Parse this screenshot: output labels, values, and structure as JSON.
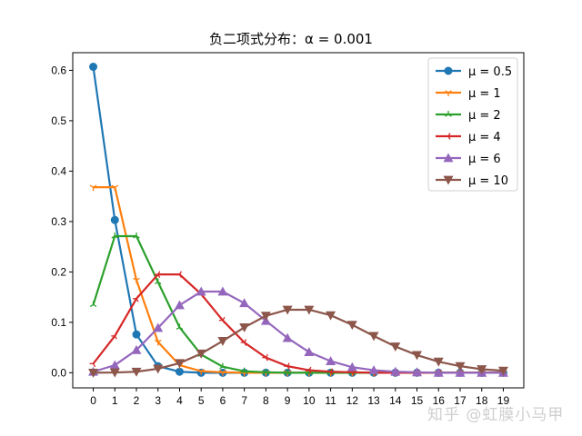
{
  "chart_data": {
    "type": "line",
    "title": "负二项式分布：α = 0.001",
    "xlabel": "",
    "ylabel": "",
    "x": [
      0,
      1,
      2,
      3,
      4,
      5,
      6,
      7,
      8,
      9,
      10,
      11,
      12,
      13,
      14,
      15,
      16,
      17,
      18,
      19
    ],
    "xticks": [
      "0",
      "1",
      "2",
      "3",
      "4",
      "5",
      "6",
      "7",
      "8",
      "9",
      "10",
      "11",
      "12",
      "13",
      "14",
      "15",
      "16",
      "17",
      "18",
      "19"
    ],
    "yticks": [
      "0.0",
      "0.1",
      "0.2",
      "0.3",
      "0.4",
      "0.5",
      "0.6"
    ],
    "ylim": [
      -0.03,
      0.635
    ],
    "xlim": [
      -0.95,
      19.95
    ],
    "grid": false,
    "legend_position": "upper right",
    "series": [
      {
        "name": "μ = 0.5",
        "color": "#1f77b4",
        "marker": "circle",
        "values": [
          0.607,
          0.303,
          0.076,
          0.013,
          0.002,
          0.0,
          0,
          0,
          0,
          0,
          0,
          0,
          0,
          0,
          0,
          0,
          0,
          0,
          0,
          0
        ]
      },
      {
        "name": "μ = 1",
        "color": "#ff7f0e",
        "marker": "tri_down",
        "values": [
          0.368,
          0.368,
          0.184,
          0.061,
          0.015,
          0.003,
          0.001,
          0,
          0,
          0,
          0,
          0,
          0,
          0,
          0,
          0,
          0,
          0,
          0,
          0
        ]
      },
      {
        "name": "μ = 2",
        "color": "#2ca02c",
        "marker": "tri_up",
        "values": [
          0.135,
          0.271,
          0.271,
          0.18,
          0.09,
          0.036,
          0.012,
          0.003,
          0.001,
          0,
          0,
          0,
          0,
          0,
          0,
          0,
          0,
          0,
          0,
          0
        ]
      },
      {
        "name": "μ = 4",
        "color": "#d62728",
        "marker": "tri_left",
        "values": [
          0.018,
          0.073,
          0.147,
          0.195,
          0.195,
          0.156,
          0.104,
          0.06,
          0.03,
          0.013,
          0.005,
          0.002,
          0.001,
          0,
          0,
          0,
          0,
          0,
          0,
          0
        ]
      },
      {
        "name": "μ = 6",
        "color": "#9467bd",
        "marker": "triangle_up",
        "values": [
          0.002,
          0.015,
          0.045,
          0.089,
          0.134,
          0.161,
          0.161,
          0.138,
          0.103,
          0.069,
          0.041,
          0.023,
          0.011,
          0.005,
          0.002,
          0.001,
          0,
          0,
          0,
          0
        ]
      },
      {
        "name": "μ = 10",
        "color": "#8c564b",
        "marker": "triangle_down",
        "values": [
          0.0,
          0.0005,
          0.002,
          0.008,
          0.019,
          0.038,
          0.063,
          0.09,
          0.113,
          0.125,
          0.125,
          0.114,
          0.095,
          0.073,
          0.052,
          0.035,
          0.022,
          0.013,
          0.007,
          0.004
        ]
      }
    ]
  },
  "watermark": "知乎 @虹膜小马甲"
}
